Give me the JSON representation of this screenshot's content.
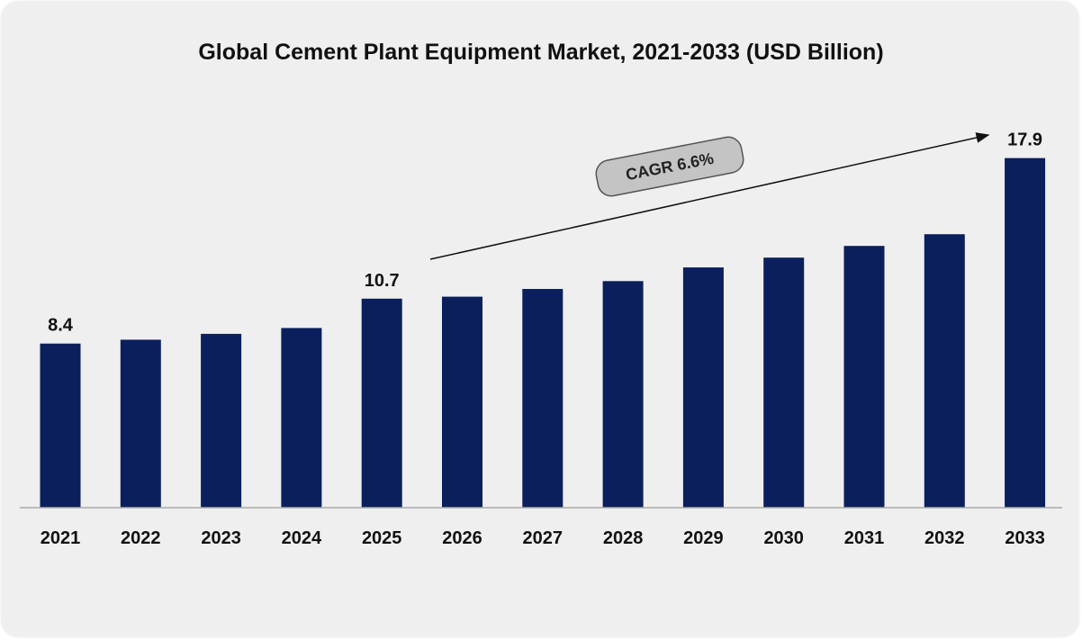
{
  "chart_data": {
    "type": "bar",
    "title": "Global Cement Plant Equipment Market, 2021-2033 (USD Billion)",
    "categories": [
      "2021",
      "2022",
      "2023",
      "2024",
      "2025",
      "2026",
      "2027",
      "2028",
      "2029",
      "2030",
      "2031",
      "2032",
      "2033"
    ],
    "values": [
      8.4,
      8.6,
      8.9,
      9.2,
      10.7,
      10.8,
      11.2,
      11.6,
      12.3,
      12.8,
      13.4,
      14.0,
      17.9
    ],
    "data_labels": [
      {
        "category": "2021",
        "text": "8.4"
      },
      {
        "category": "2025",
        "text": "10.7"
      },
      {
        "category": "2033",
        "text": "17.9"
      }
    ],
    "annotation": "CAGR 6.6%",
    "xlabel": "",
    "ylabel": "",
    "grid": false,
    "legend": "none",
    "bar_color": "#0b1f5c"
  }
}
